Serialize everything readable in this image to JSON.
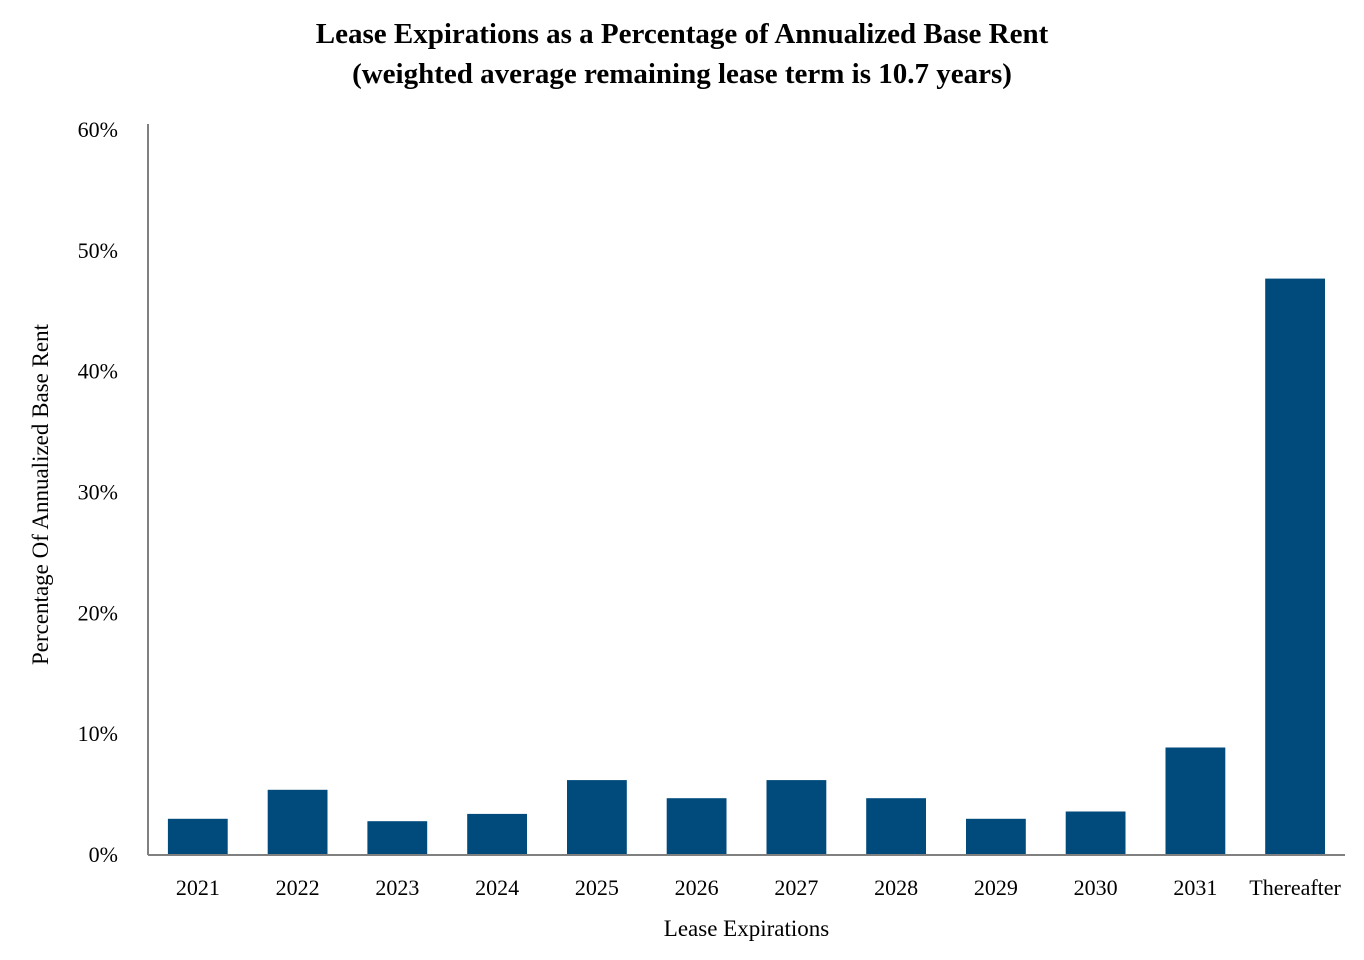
{
  "chart_data": {
    "type": "bar",
    "title": "Lease Expirations as a Percentage of Annualized Base Rent",
    "subtitle": "(weighted average remaining lease term is 10.7 years)",
    "xlabel": "Lease Expirations",
    "ylabel": "Percentage Of Annualized Base Rent",
    "categories": [
      "2021",
      "2022",
      "2023",
      "2024",
      "2025",
      "2026",
      "2027",
      "2028",
      "2029",
      "2030",
      "2031",
      "Thereafter"
    ],
    "values": [
      3.0,
      5.4,
      2.8,
      3.4,
      6.2,
      4.7,
      6.2,
      4.7,
      3.0,
      3.6,
      8.9,
      47.7
    ],
    "ylim": [
      0,
      60
    ],
    "yticks": [
      0,
      10,
      20,
      30,
      40,
      50,
      60
    ],
    "ytick_labels": [
      "0%",
      "10%",
      "20%",
      "30%",
      "40%",
      "50%",
      "60%"
    ],
    "bar_color": "#004a7c",
    "axis_color": "#808080",
    "grid": false,
    "legend": "none"
  }
}
